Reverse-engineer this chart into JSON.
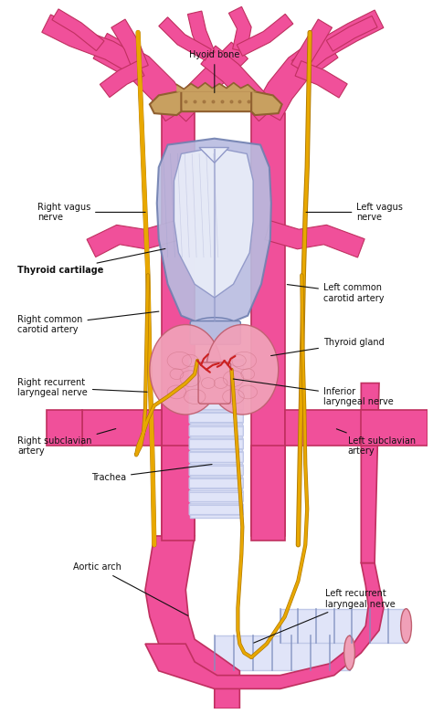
{
  "bg": "#ffffff",
  "artery_fill": "#f0509a",
  "artery_edge": "#c03060",
  "artery_light": "#f880b8",
  "artery_dark": "#d03070",
  "nerve_fill": "#e8a800",
  "nerve_edge": "#b07800",
  "nerve_light": "#f0c840",
  "hyoid_fill": "#c8a060",
  "hyoid_edge": "#906030",
  "hyoid_light": "#e0c090",
  "cart_fill": "#b8bce0",
  "cart_edge": "#7080b0",
  "cart_light": "#d8dcf8",
  "cart_mid": "#9098c8",
  "white_area": "#e8ecf8",
  "thyroid_fill": "#f0a0b8",
  "thyroid_edge": "#c06070",
  "thyroid_light": "#f8d0dc",
  "trachea_fill": "#c0c8e8",
  "trachea_edge": "#8090c0",
  "trachea_light": "#e0e4f8",
  "red_vessels": "#cc2020",
  "text_color": "#111111",
  "label_fs": 7.0,
  "labels": {
    "hyoid_bone": "Hyoid bone",
    "right_vagus": "Right vagus\nnerve",
    "left_vagus": "Left vagus\nnerve",
    "thyroid_cartilage": "Thyroid cartilage",
    "right_common_carotid": "Right common\ncarotid artery",
    "left_common_carotid": "Left common\ncarotid artery",
    "thyroid_gland": "Thyroid gland",
    "right_recurrent": "Right recurrent\nlaryngeal nerve",
    "inferior_laryngeal": "Inferior\nlaryngeal nerve",
    "right_subclavian": "Right subclavian\nartery",
    "left_subclavian": "Left subclavian\nartery",
    "trachea": "Trachea",
    "aortic_arch": "Aortic arch",
    "left_recurrent": "Left recurrent\nlaryngeal nerve"
  }
}
